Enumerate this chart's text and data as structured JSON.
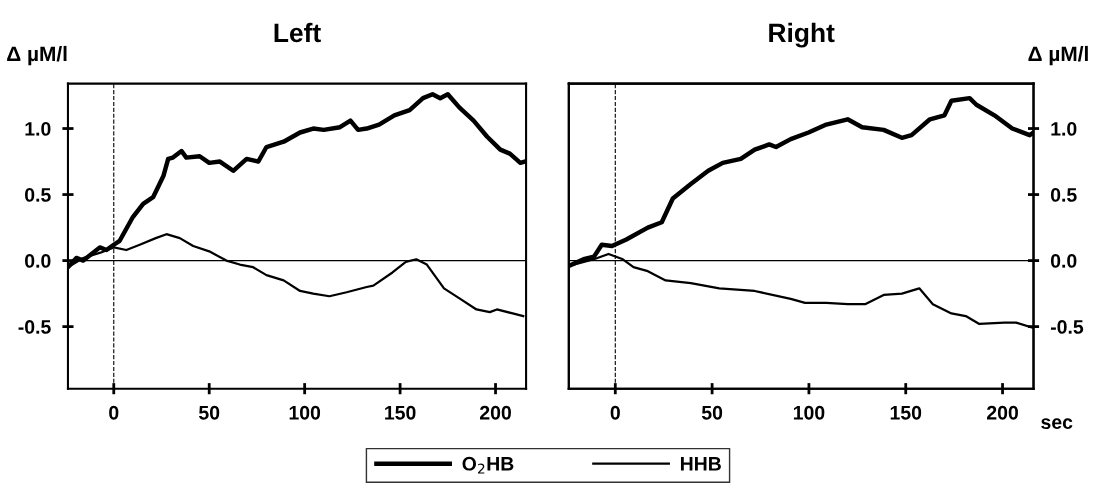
{
  "chart_data": [
    {
      "type": "line",
      "title": "Left",
      "ylabel": "Δ µM/l",
      "xlim": [
        -24,
        216
      ],
      "xticks": [
        0,
        50,
        100,
        150,
        200
      ],
      "ylim": [
        -0.97,
        1.34
      ],
      "yticks": [
        {
          "value": -0.5,
          "label": "-0.5"
        },
        {
          "value": 0,
          "label": "0.0"
        },
        {
          "value": 0.5,
          "label": "0.5"
        },
        {
          "value": 1,
          "label": "1.0"
        }
      ],
      "grid": false,
      "legend": "bottom",
      "marker": "none",
      "line_style": "solid",
      "ref_lines": [
        {
          "axis": "x",
          "value": 0,
          "label": null,
          "color": "#000000",
          "line_style": "dashed"
        },
        {
          "axis": "y",
          "value": 0,
          "label": null,
          "color": "#000000",
          "line_style": "solid"
        }
      ],
      "series": [
        {
          "name": "O$_{2}$HB",
          "color": "#000000",
          "x": [
            -24,
            -19.6,
            -16,
            -7.3,
            -3.8,
            0,
            3.1,
            10,
            15.4,
            20.6,
            26,
            28.5,
            31,
            35.5,
            38,
            45,
            50,
            55.6,
            62.6,
            69.6,
            75.7,
            80,
            89,
            97.6,
            104.5,
            110,
            118.5,
            124,
            128,
            132.5,
            139,
            147,
            155,
            162,
            167,
            171,
            175,
            181,
            188.5,
            195.5,
            202.5,
            207.5,
            213,
            215.5
          ],
          "values": [
            -0.05,
            0.02,
            0.0,
            0.1,
            0.08,
            0.12,
            0.15,
            0.33,
            0.43,
            0.48,
            0.64,
            0.77,
            0.78,
            0.83,
            0.78,
            0.79,
            0.74,
            0.75,
            0.68,
            0.77,
            0.75,
            0.86,
            0.9,
            0.97,
            1.0,
            0.99,
            1.01,
            1.06,
            0.99,
            1.0,
            1.03,
            1.1,
            1.14,
            1.23,
            1.26,
            1.23,
            1.26,
            1.16,
            1.06,
            0.94,
            0.84,
            0.81,
            0.74,
            0.75
          ]
        },
        {
          "name": "HHB",
          "color": "#000000",
          "x": [
            -24,
            -16,
            -7,
            0,
            6.6,
            13.6,
            22,
            27.6,
            34.6,
            41.6,
            50,
            59,
            66,
            73,
            80,
            89,
            97.6,
            104.5,
            113,
            122,
            132.5,
            136,
            146,
            153,
            158.5,
            164,
            173,
            181.5,
            190,
            197,
            200.7,
            209,
            214.5
          ],
          "values": [
            -0.05,
            0.02,
            0.06,
            0.1,
            0.08,
            0.12,
            0.17,
            0.2,
            0.17,
            0.11,
            0.07,
            0.0,
            -0.03,
            -0.05,
            -0.11,
            -0.15,
            -0.23,
            -0.25,
            -0.27,
            -0.24,
            -0.2,
            -0.19,
            -0.09,
            -0.01,
            0.01,
            -0.03,
            -0.21,
            -0.29,
            -0.37,
            -0.39,
            -0.37,
            -0.4,
            -0.42
          ]
        }
      ]
    },
    {
      "type": "line",
      "title": "Right",
      "y2label": "Δ µM/l",
      "xlabel": "sec",
      "xlim": [
        -24,
        216
      ],
      "xticks": [
        0,
        50,
        100,
        150,
        200
      ],
      "y2lim": [
        -0.97,
        1.34
      ],
      "y2ticks": [
        {
          "value": -0.5,
          "label": "-0.5"
        },
        {
          "value": 0,
          "label": "0.0"
        },
        {
          "value": 0.5,
          "label": "0.5"
        },
        {
          "value": 1,
          "label": "1.0"
        }
      ],
      "grid": false,
      "marker": "none",
      "line_style": "solid",
      "ref_lines": [
        {
          "axis": "x",
          "value": 0,
          "label": null,
          "color": "#000000",
          "line_style": "dashed"
        },
        {
          "axis": "y2",
          "value": 0,
          "label": null,
          "color": "#000000",
          "line_style": "solid"
        }
      ],
      "series": [
        {
          "color": "#000000",
          "axis": "y2",
          "x": [
            -23.8,
            -16.4,
            -11,
            -7,
            -1.7,
            5.7,
            16.8,
            24,
            29.7,
            39,
            48,
            55.5,
            64.8,
            72,
            79.5,
            83,
            90.6,
            99.8,
            109,
            120,
            127.5,
            138.6,
            148,
            153,
            162.5,
            170,
            173.6,
            183,
            186.5,
            195.8,
            205,
            214,
            216
          ],
          "values": [
            -0.04,
            0.01,
            0.03,
            0.12,
            0.11,
            0.16,
            0.25,
            0.29,
            0.47,
            0.58,
            0.68,
            0.74,
            0.77,
            0.84,
            0.88,
            0.86,
            0.92,
            0.97,
            1.03,
            1.07,
            1.01,
            0.99,
            0.93,
            0.95,
            1.07,
            1.1,
            1.21,
            1.23,
            1.18,
            1.1,
            1.0,
            0.95,
            0.97
          ]
        },
        {
          "color": "#000000",
          "axis": "y2",
          "x": [
            -23.8,
            -11,
            -3.5,
            3.9,
            9.4,
            16.8,
            26,
            39,
            53.7,
            72,
            90.6,
            98,
            109,
            120,
            129,
            138.6,
            148,
            157,
            164,
            173.6,
            181,
            188,
            201,
            207,
            216
          ],
          "values": [
            -0.04,
            0.01,
            0.05,
            0.01,
            -0.05,
            -0.08,
            -0.15,
            -0.17,
            -0.21,
            -0.23,
            -0.29,
            -0.32,
            -0.32,
            -0.33,
            -0.33,
            -0.26,
            -0.25,
            -0.21,
            -0.33,
            -0.4,
            -0.42,
            -0.48,
            -0.47,
            -0.47,
            -0.51
          ]
        }
      ]
    }
  ]
}
